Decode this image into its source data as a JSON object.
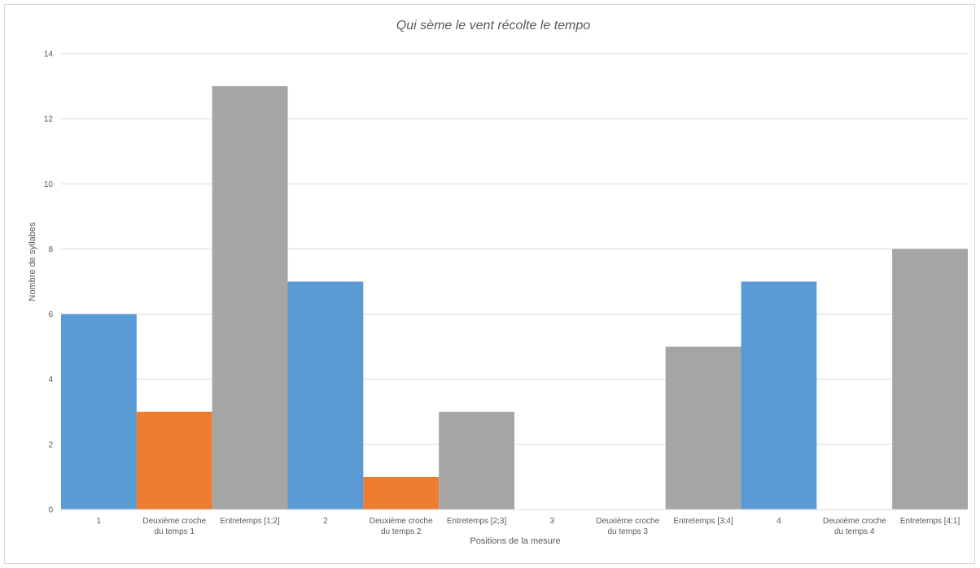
{
  "chart_data": {
    "type": "bar",
    "title": "Qui sème le vent récolte le tempo",
    "xlabel": "Positions de la mesure",
    "ylabel": "Nombre  de syllabes",
    "ylim": [
      0,
      14
    ],
    "yticks": [
      0,
      2,
      4,
      6,
      8,
      10,
      12,
      14
    ],
    "grid": true,
    "legend": "none",
    "categories": [
      [
        "1"
      ],
      [
        "Deuxième croche",
        "du temps 1"
      ],
      [
        "Entretemps  [1;2]"
      ],
      [
        "2"
      ],
      [
        "Deuxième croche",
        "du temps 2"
      ],
      [
        "Entretemps  [2;3]"
      ],
      [
        "3"
      ],
      [
        "Deuxième croche",
        "du temps 3"
      ],
      [
        "Entretemps  [3;4]"
      ],
      [
        "4"
      ],
      [
        "Deuxième croche",
        "du temps 4"
      ],
      [
        "Entretemps  [4;1]"
      ]
    ],
    "values": [
      6,
      3,
      13,
      7,
      1,
      3,
      0,
      0,
      5,
      7,
      0,
      8
    ],
    "bar_colors": [
      "#5b9bd5",
      "#ed7d31",
      "#a5a5a5",
      "#5b9bd5",
      "#ed7d31",
      "#a5a5a5",
      "#5b9bd5",
      "#ed7d31",
      "#a5a5a5",
      "#5b9bd5",
      "#ed7d31",
      "#a5a5a5"
    ],
    "colors": {
      "grid": "#d9d9d9",
      "axis": "#d9d9d9",
      "text": "#595959"
    }
  }
}
